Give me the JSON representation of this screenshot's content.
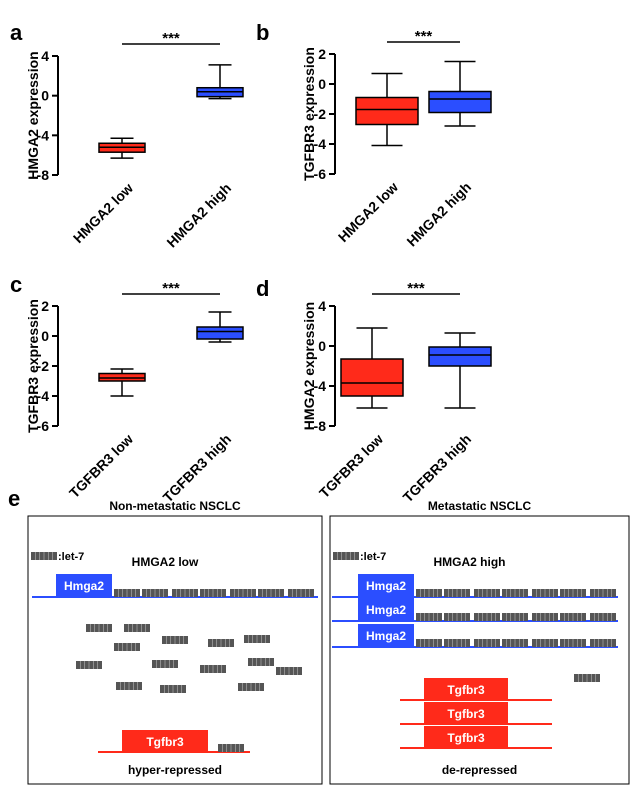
{
  "chart_data": [
    {
      "type": "box",
      "label": "a",
      "ylabel": "HMGA2 expression",
      "categories": [
        "HMGA2 low",
        "HMGA2 high"
      ],
      "colors": [
        "#ff2a1a",
        "#2b4eff"
      ],
      "annotation": "***",
      "ylim": [
        -8,
        4
      ],
      "yticks": [
        -8,
        -4,
        0,
        4
      ],
      "boxes": [
        {
          "whisker_low": -6.3,
          "q1": -5.7,
          "median": -5.2,
          "q3": -4.8,
          "whisker_high": -4.3
        },
        {
          "whisker_low": -0.3,
          "q1": -0.1,
          "median": 0.4,
          "q3": 0.8,
          "whisker_high": 3.1
        }
      ]
    },
    {
      "type": "box",
      "label": "b",
      "ylabel": "TGFBR3 expression",
      "categories": [
        "HMGA2 low",
        "HMGA2 high"
      ],
      "colors": [
        "#ff2a1a",
        "#2b4eff"
      ],
      "annotation": "***",
      "ylim": [
        -6,
        2
      ],
      "yticks": [
        -6,
        -4,
        -2,
        0,
        2
      ],
      "boxes": [
        {
          "whisker_low": -4.1,
          "q1": -2.7,
          "median": -1.7,
          "q3": -0.9,
          "whisker_high": 0.7
        },
        {
          "whisker_low": -2.8,
          "q1": -1.9,
          "median": -1.0,
          "q3": -0.5,
          "whisker_high": 1.5
        }
      ]
    },
    {
      "type": "box",
      "label": "c",
      "ylabel": "TGFBR3 expression",
      "categories": [
        "TGFBR3 low",
        "TGFBR3 high"
      ],
      "colors": [
        "#ff2a1a",
        "#2b4eff"
      ],
      "annotation": "***",
      "ylim": [
        -6,
        2
      ],
      "yticks": [
        -6,
        -4,
        -2,
        0,
        2
      ],
      "boxes": [
        {
          "whisker_low": -4.0,
          "q1": -3.0,
          "median": -2.8,
          "q3": -2.5,
          "whisker_high": -2.2
        },
        {
          "whisker_low": -0.4,
          "q1": -0.2,
          "median": 0.3,
          "q3": 0.6,
          "whisker_high": 1.6
        }
      ]
    },
    {
      "type": "box",
      "label": "d",
      "ylabel": "HMGA2 expression",
      "categories": [
        "TGFBR3 low",
        "TGFBR3 high"
      ],
      "colors": [
        "#ff2a1a",
        "#2b4eff"
      ],
      "annotation": "***",
      "ylim": [
        -8,
        4
      ],
      "yticks": [
        -8,
        -4,
        0,
        4
      ],
      "boxes": [
        {
          "whisker_low": -6.2,
          "q1": -5.0,
          "median": -3.7,
          "q3": -1.3,
          "whisker_high": 1.8
        },
        {
          "whisker_low": -6.2,
          "q1": -2.0,
          "median": -0.9,
          "q3": -0.1,
          "whisker_high": 1.3
        }
      ]
    }
  ],
  "diagram": {
    "label": "e",
    "left": {
      "title": "Non-metastatic NSCLC",
      "legend": ":let-7",
      "state": "HMGA2 low",
      "hmga2": [
        "Hmga2"
      ],
      "tgfbr3": [
        "Tgfbr3"
      ],
      "outcome": "hyper-repressed"
    },
    "right": {
      "title": "Metastatic NSCLC",
      "legend": ":let-7",
      "state": "HMGA2 high",
      "hmga2": [
        "Hmga2",
        "Hmga2",
        "Hmga2"
      ],
      "tgfbr3": [
        "Tgfbr3",
        "Tgfbr3",
        "Tgfbr3"
      ],
      "outcome": "de-repressed"
    }
  }
}
